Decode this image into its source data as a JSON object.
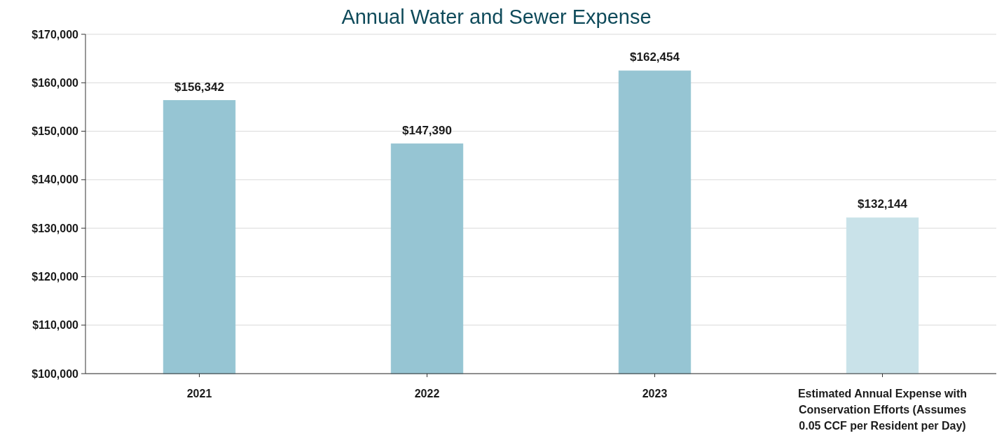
{
  "chart_data": {
    "type": "bar",
    "title": "Annual Water and Sewer Expense",
    "categories": [
      "2021",
      "2022",
      "2023",
      "Estimated Annual Expense with Conservation Efforts (Assumes 0.05 CCF per Resident per Day)"
    ],
    "values": [
      156342,
      147390,
      162454,
      132144
    ],
    "colors": [
      "#96c5d3",
      "#96c5d3",
      "#96c5d3",
      "#c9e2e9"
    ],
    "value_labels": [
      "$156,342",
      "$147,390",
      "$162,454",
      "$132,144"
    ],
    "ylim": [
      100000,
      170000
    ],
    "yticks": [
      {
        "value": 100000,
        "label": "$100,000"
      },
      {
        "value": 110000,
        "label": "$110,000"
      },
      {
        "value": 120000,
        "label": "$120,000"
      },
      {
        "value": 130000,
        "label": "$130,000"
      },
      {
        "value": 140000,
        "label": "$140,000"
      },
      {
        "value": 150000,
        "label": "$150,000"
      },
      {
        "value": 160000,
        "label": "$160,000"
      },
      {
        "value": 170000,
        "label": "$170,000"
      }
    ],
    "grid": "y"
  }
}
